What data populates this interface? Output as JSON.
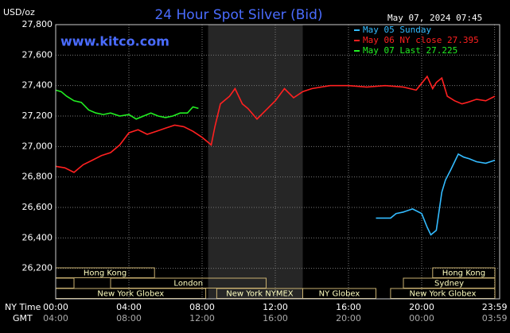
{
  "chart_data": {
    "type": "line",
    "title": "24 Hour Spot Silver (Bid)",
    "y_label": "USD/oz",
    "timestamp": "May 07, 2024 07:45",
    "site": "www.kitco.com",
    "x_label": "NY Time",
    "x2_label": "GMT",
    "xlim": [
      0,
      24
    ],
    "xticks": [
      {
        "value": 0,
        "label": "00:00"
      },
      {
        "value": 4,
        "label": "04:00"
      },
      {
        "value": 8,
        "label": "08:00"
      },
      {
        "value": 12,
        "label": "12:00"
      },
      {
        "value": 16,
        "label": "16:00"
      },
      {
        "value": 20,
        "label": "20:00"
      },
      {
        "value": 23.983,
        "label": "23:59"
      }
    ],
    "xtick_labels_gmt": [
      "04:00",
      "08:00",
      "12:00",
      "16:00",
      "20:00",
      "00:00",
      "03:59"
    ],
    "ylim": [
      26000,
      27800
    ],
    "yticks": [
      {
        "value": 26200,
        "label": "26,200"
      },
      {
        "value": 26400,
        "label": "26,400"
      },
      {
        "value": 26600,
        "label": "26,600"
      },
      {
        "value": 26800,
        "label": "26,800"
      },
      {
        "value": 27000,
        "label": "27,000"
      },
      {
        "value": 27200,
        "label": "27,200"
      },
      {
        "value": 27400,
        "label": "27,400"
      },
      {
        "value": 27600,
        "label": "27,600"
      },
      {
        "value": 27800,
        "label": "27,800"
      }
    ],
    "grid": true,
    "shaded_region": [
      8.33,
      13.5
    ],
    "session_rows": [
      [
        {
          "name": "Hong Kong",
          "start": 0,
          "end": 5.4
        },
        {
          "name": "Hong Kong",
          "start": 20.6,
          "end": 24
        }
      ],
      [
        {
          "name": null,
          "start": 0,
          "end": 1
        },
        {
          "name": "London",
          "start": 3,
          "end": 11.5
        },
        {
          "name": "Sydney",
          "start": 19,
          "end": 24
        }
      ],
      [
        {
          "name": "New York Globex",
          "start": 0,
          "end": 8.2
        },
        {
          "name": "New York NYMEX",
          "start": 8.8,
          "end": 13.5
        },
        {
          "name": "NY Globex",
          "start": 13.5,
          "end": 17.5
        },
        {
          "name": "New York Globex",
          "start": 18.3,
          "end": 24
        }
      ]
    ],
    "series": [
      {
        "name": "May 05 Sunday",
        "color": "#33bbff",
        "x": [
          17.5,
          18.3,
          18.6,
          19,
          19.5,
          20,
          20.3,
          20.5,
          20.8,
          21.1,
          21.3,
          21.6,
          22,
          22.3,
          22.6,
          23,
          23.5,
          24
        ],
        "values": [
          26530,
          26530,
          26560,
          26570,
          26590,
          26560,
          26470,
          26420,
          26450,
          26700,
          26780,
          26850,
          26950,
          26930,
          26920,
          26900,
          26890,
          26910
        ]
      },
      {
        "name": "May 06 NY close 27.395",
        "color": "#ff2020",
        "x": [
          0,
          0.5,
          1,
          1.5,
          2,
          2.5,
          3,
          3.5,
          4,
          4.5,
          5,
          5.5,
          6,
          6.5,
          7,
          7.5,
          8,
          8.5,
          8.7,
          9,
          9.5,
          9.8,
          10.2,
          10.5,
          11,
          11.5,
          12,
          12.5,
          13,
          13.5,
          14,
          15,
          16,
          17,
          18,
          19,
          19.7,
          20.3,
          20.6,
          20.8,
          21.1,
          21.4,
          21.8,
          22.2,
          22.5,
          23,
          23.5,
          24
        ],
        "values": [
          26870,
          26860,
          26830,
          26880,
          26910,
          26940,
          26960,
          27010,
          27090,
          27110,
          27080,
          27100,
          27120,
          27140,
          27130,
          27100,
          27060,
          27010,
          27130,
          27280,
          27330,
          27380,
          27280,
          27250,
          27180,
          27240,
          27300,
          27380,
          27320,
          27360,
          27380,
          27400,
          27400,
          27390,
          27400,
          27390,
          27370,
          27460,
          27380,
          27420,
          27450,
          27330,
          27300,
          27280,
          27290,
          27310,
          27300,
          27330
        ]
      },
      {
        "name": "May 07 Last 27.225",
        "color": "#22ee22",
        "x": [
          0,
          0.3,
          0.6,
          1,
          1.4,
          1.8,
          2.2,
          2.6,
          3,
          3.5,
          4,
          4.4,
          4.8,
          5.2,
          5.6,
          6,
          6.4,
          6.8,
          7.2,
          7.5,
          7.8
        ],
        "values": [
          27370,
          27360,
          27330,
          27300,
          27290,
          27240,
          27220,
          27210,
          27220,
          27200,
          27210,
          27180,
          27200,
          27220,
          27200,
          27190,
          27200,
          27220,
          27220,
          27260,
          27250
        ]
      }
    ]
  }
}
